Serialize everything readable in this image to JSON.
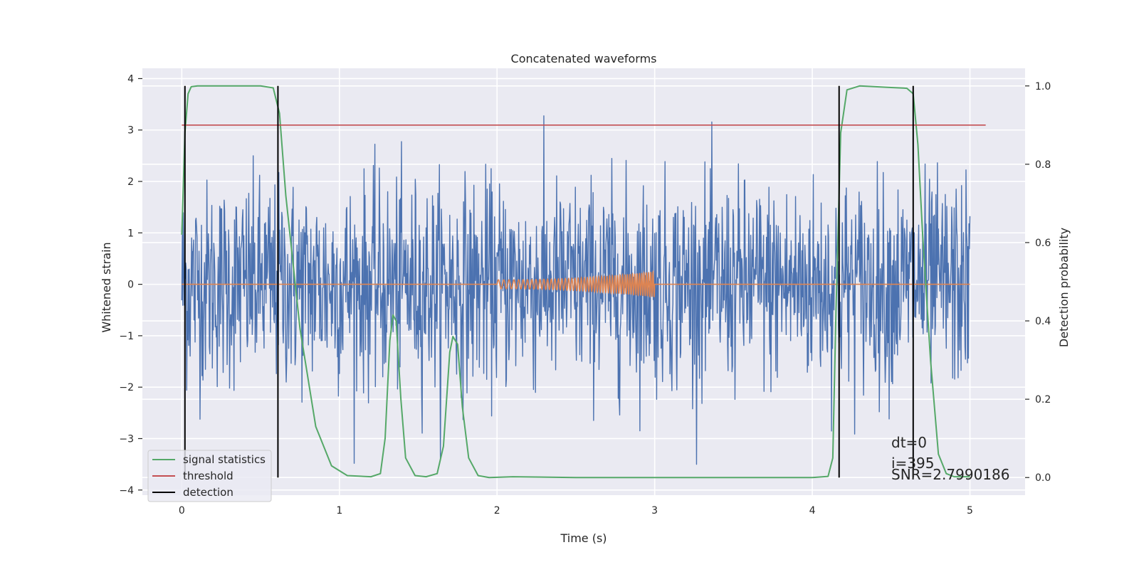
{
  "chart_data": {
    "type": "line",
    "title": "Concatenated waveforms",
    "xlabel": "Time (s)",
    "ylabel": "Whitened strain",
    "ylabel_right": "Detection probability",
    "xlim": [
      -0.25,
      5.35
    ],
    "ylim": [
      -4.1,
      4.2
    ],
    "ylim_right": [
      -0.045,
      1.045
    ],
    "xticks": [
      0,
      1,
      2,
      3,
      4,
      5
    ],
    "yticks": [
      -4,
      -3,
      -2,
      -1,
      0,
      1,
      2,
      3,
      4
    ],
    "yticks_right": [
      0.0,
      0.2,
      0.4,
      0.6,
      0.8,
      1.0
    ],
    "xtick_labels": [
      "0",
      "1",
      "2",
      "3",
      "4",
      "5"
    ],
    "ytick_labels": [
      "−4",
      "−3",
      "−2",
      "−1",
      "0",
      "1",
      "2",
      "3",
      "4"
    ],
    "ytick_right_labels": [
      "0.0",
      "0.2",
      "0.4",
      "0.6",
      "0.8",
      "1.0"
    ],
    "grid": true,
    "legend_position": "lower-left",
    "series": [
      {
        "name": "",
        "role": "whitened-strain",
        "color": "#4c72b0",
        "x_range": [
          0,
          5
        ],
        "approx_noise_std": 1.0,
        "approx_range": [
          -3.5,
          3.9
        ]
      },
      {
        "name": "",
        "role": "injected-waveform",
        "color": "#dd8452",
        "x_range": [
          0,
          5
        ],
        "chirp_x_range": [
          2.0,
          3.0
        ],
        "chirp_peak_amplitude": 0.25
      },
      {
        "name": "signal statistics",
        "role": "detection-probability",
        "axis": "right",
        "color": "#55a868",
        "x": [
          0,
          0.02,
          0.04,
          0.06,
          0.1,
          0.5,
          0.58,
          0.62,
          0.66,
          0.75,
          0.85,
          0.95,
          1.05,
          1.2,
          1.26,
          1.29,
          1.32,
          1.34,
          1.36,
          1.39,
          1.42,
          1.48,
          1.55,
          1.62,
          1.66,
          1.7,
          1.72,
          1.75,
          1.78,
          1.82,
          1.88,
          1.95,
          2.1,
          2.5,
          3.0,
          3.5,
          4.0,
          4.1,
          4.13,
          4.15,
          4.18,
          4.22,
          4.3,
          4.5,
          4.6,
          4.64,
          4.67,
          4.7,
          4.75,
          4.8,
          4.85,
          4.9,
          5.0
        ],
        "y": [
          0.62,
          0.88,
          0.98,
          0.998,
          1.0,
          1.0,
          0.995,
          0.93,
          0.72,
          0.38,
          0.13,
          0.03,
          0.005,
          0.002,
          0.01,
          0.1,
          0.35,
          0.415,
          0.4,
          0.2,
          0.05,
          0.005,
          0.002,
          0.01,
          0.08,
          0.32,
          0.36,
          0.34,
          0.18,
          0.05,
          0.005,
          0.0,
          0.002,
          0.0,
          0.0,
          0.0,
          0.0,
          0.003,
          0.05,
          0.42,
          0.88,
          0.99,
          1.0,
          0.996,
          0.994,
          0.98,
          0.85,
          0.62,
          0.3,
          0.06,
          0.01,
          0.002,
          0.002
        ]
      },
      {
        "name": "threshold",
        "role": "threshold",
        "axis": "right",
        "color": "#c44e52",
        "x": [
          0,
          5.1
        ],
        "y": [
          0.9,
          0.9
        ]
      },
      {
        "name": "detection",
        "role": "detection",
        "color": "#000000",
        "x_positions": [
          0.02,
          0.61,
          4.17,
          4.64
        ],
        "y_range_right": [
          0.0,
          1.0
        ]
      }
    ],
    "annotations": [
      "dt=0",
      "i=395",
      "SNR=2.7990186"
    ]
  }
}
